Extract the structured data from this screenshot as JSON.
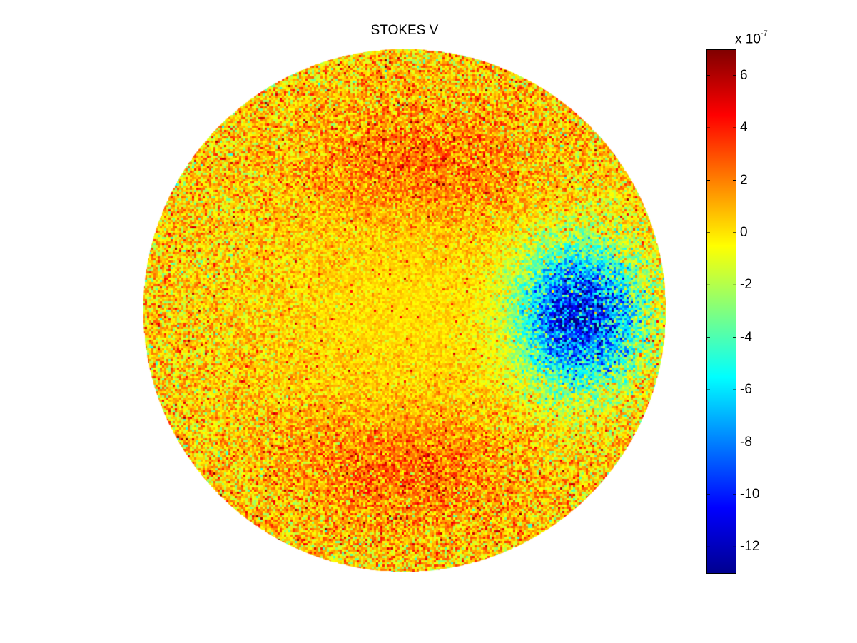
{
  "chart_data": {
    "type": "heatmap",
    "title": "STOKES  V",
    "shape": "polar-disk",
    "colormap": "jet",
    "colorbar": {
      "min": -13,
      "max": 7,
      "ticks": [
        6,
        4,
        2,
        0,
        -2,
        -4,
        -6,
        -8,
        -10,
        -12
      ],
      "tick_labels": [
        "6",
        "4",
        "2",
        "0",
        "-2",
        "-4",
        "-6",
        "-8",
        "-10",
        "-12"
      ],
      "multiplier_base": "x 10",
      "multiplier_exponent": "-7"
    },
    "features": [
      {
        "region": "right of center",
        "approx_value": -10,
        "description": "negative (blue) lobe"
      },
      {
        "region": "upper middle",
        "approx_value": 2,
        "description": "positive (orange) band"
      },
      {
        "region": "lower middle",
        "approx_value": 2,
        "description": "positive (orange) band"
      },
      {
        "region": "left and center",
        "approx_value": 0,
        "description": "near-zero (yellow)"
      }
    ]
  }
}
